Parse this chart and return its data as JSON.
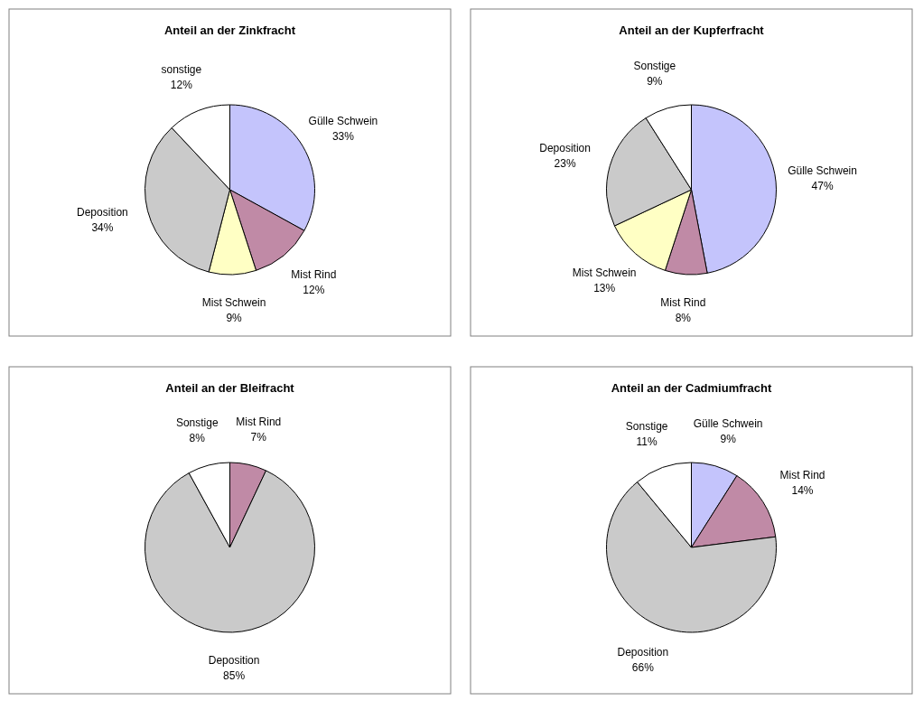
{
  "chart_data": [
    {
      "type": "pie",
      "title": "Anteil an der Zinkfracht",
      "categories": [
        "Gülle Schwein",
        "Mist Rind",
        "Mist Schwein",
        "Deposition",
        "sonstige"
      ],
      "values": [
        33,
        12,
        9,
        34,
        12
      ],
      "value_labels": [
        "33%",
        "12%",
        "9%",
        "34%",
        "12%"
      ],
      "colors": [
        "#c4c4fc",
        "#c08aa6",
        "#ffffc4",
        "#cacaca",
        "#ffffff"
      ]
    },
    {
      "type": "pie",
      "title": "Anteil an der Kupferfracht",
      "categories": [
        "Gülle Schwein",
        "Mist Rind",
        "Mist Schwein",
        "Deposition",
        "Sonstige"
      ],
      "values": [
        47,
        8,
        13,
        23,
        9
      ],
      "value_labels": [
        "47%",
        "8%",
        "13%",
        "23%",
        "9%"
      ],
      "colors": [
        "#c4c4fc",
        "#c08aa6",
        "#ffffc4",
        "#cacaca",
        "#ffffff"
      ]
    },
    {
      "type": "pie",
      "title": "Anteil an der Bleifracht",
      "categories": [
        "Mist Rind",
        "Deposition",
        "Sonstige"
      ],
      "values": [
        7,
        85,
        8
      ],
      "value_labels": [
        "7%",
        "85%",
        "8%"
      ],
      "colors": [
        "#c08aa6",
        "#cacaca",
        "#ffffff"
      ]
    },
    {
      "type": "pie",
      "title": "Anteil an der Cadmiumfracht",
      "categories": [
        "Gülle Schwein",
        "Mist Rind",
        "Deposition",
        "Sonstige"
      ],
      "values": [
        9,
        14,
        66,
        11
      ],
      "value_labels": [
        "9%",
        "14%",
        "66%",
        "11%"
      ],
      "colors": [
        "#c4c4fc",
        "#c08aa6",
        "#cacaca",
        "#ffffff"
      ]
    }
  ]
}
